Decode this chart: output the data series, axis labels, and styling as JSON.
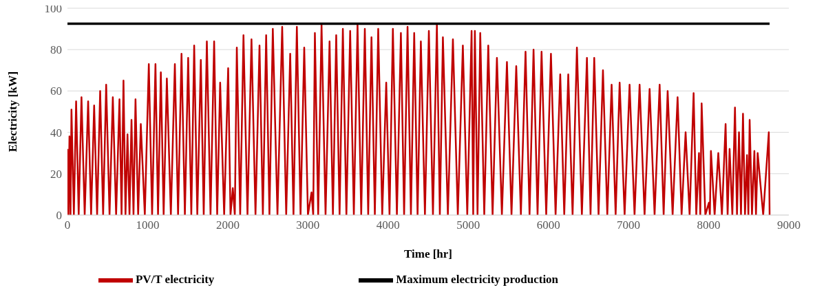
{
  "chart_data": {
    "type": "line",
    "xlabel": "Time [hr]",
    "ylabel": "Electricity [kW]",
    "xlim": [
      0,
      9000
    ],
    "xticks": [
      0,
      1000,
      2000,
      3000,
      4000,
      5000,
      6000,
      7000,
      8000,
      9000
    ],
    "ylim": [
      0,
      100
    ],
    "yticks": [
      0,
      20,
      40,
      60,
      80,
      100
    ],
    "grid": "y",
    "legend": "bottom",
    "marker": "none",
    "line_style": "solid",
    "series": [
      {
        "name": "PV/T electricity",
        "color": "#c00000",
        "x": [
          0,
          12,
          25,
          38,
          50,
          80,
          108,
          140,
          175,
          215,
          258,
          295,
          333,
          370,
          408,
          445,
          483,
          525,
          566,
          607,
          649,
          675,
          699,
          724,
          749,
          774,
          799,
          824,
          849,
          882,
          915,
          965,
          1015,
          1056,
          1098,
          1130,
          1165,
          1200,
          1240,
          1290,
          1340,
          1380,
          1423,
          1465,
          1506,
          1545,
          1581,
          1620,
          1664,
          1700,
          1739,
          1785,
          1830,
          1868,
          1905,
          1955,
          2005,
          2034,
          2063,
          2088,
          2113,
          2155,
          2196,
          2246,
          2296,
          2346,
          2396,
          2438,
          2479,
          2520,
          2562,
          2620,
          2679,
          2729,
          2779,
          2820,
          2862,
          2908,
          2954,
          3000,
          3045,
          3066,
          3087,
          3128,
          3170,
          3220,
          3270,
          3312,
          3353,
          3395,
          3436,
          3480,
          3527,
          3573,
          3619,
          3665,
          3710,
          3752,
          3793,
          3835,
          3877,
          3927,
          3977,
          4018,
          4060,
          4110,
          4160,
          4200,
          4243,
          4285,
          4326,
          4368,
          4409,
          4460,
          4509,
          4560,
          4609,
          4646,
          4684,
          4746,
          4809,
          4870,
          4933,
          4988,
          5042,
          5062,
          5083,
          5116,
          5150,
          5200,
          5250,
          5304,
          5358,
          5420,
          5483,
          5540,
          5599,
          5657,
          5715,
          5765,
          5815,
          5865,
          5915,
          5973,
          6032,
          6090,
          6148,
          6198,
          6248,
          6302,
          6356,
          6418,
          6481,
          6526,
          6572,
          6626,
          6681,
          6735,
          6789,
          6839,
          6889,
          6951,
          7013,
          7075,
          7138,
          7200,
          7263,
          7325,
          7388,
          7438,
          7488,
          7550,
          7612,
          7662,
          7712,
          7762,
          7812,
          7845,
          7879,
          7895,
          7912,
          7958,
          8003,
          8015,
          8028,
          8074,
          8120,
          8165,
          8211,
          8236,
          8261,
          8295,
          8328,
          8353,
          8378,
          8403,
          8428,
          8453,
          8478,
          8495,
          8511,
          8540,
          8570,
          8590,
          8611,
          8680,
          8750,
          8760
        ],
        "values": [
          32,
          0,
          38,
          0,
          51,
          0,
          55,
          0,
          57,
          0,
          55,
          0,
          53,
          0,
          60,
          0,
          63,
          0,
          57,
          0,
          56,
          0,
          65,
          0,
          39,
          0,
          46,
          0,
          56,
          0,
          44,
          0,
          73,
          0,
          73,
          0,
          69,
          0,
          66,
          0,
          73,
          0,
          78,
          0,
          76,
          0,
          82,
          0,
          75,
          0,
          84,
          0,
          84,
          0,
          64,
          0,
          71,
          0,
          13,
          0,
          81,
          0,
          87,
          0,
          85,
          0,
          82,
          0,
          87,
          0,
          90,
          0,
          91,
          0,
          78,
          0,
          91,
          0,
          81,
          0,
          11,
          0,
          88,
          0,
          92,
          0,
          84,
          0,
          87,
          0,
          90,
          0,
          89,
          0,
          92,
          0,
          90,
          0,
          86,
          0,
          90,
          0,
          64,
          0,
          90,
          0,
          88,
          0,
          91,
          0,
          88,
          0,
          84,
          0,
          89,
          0,
          92,
          0,
          86,
          0,
          85,
          0,
          82,
          0,
          89,
          0,
          89,
          0,
          88,
          0,
          82,
          0,
          76,
          0,
          74,
          0,
          72,
          0,
          79,
          0,
          80,
          0,
          79,
          0,
          78,
          0,
          68,
          0,
          68,
          0,
          81,
          0,
          76,
          0,
          76,
          0,
          70,
          0,
          63,
          0,
          64,
          0,
          63,
          0,
          63,
          0,
          61,
          0,
          63,
          0,
          60,
          0,
          57,
          0,
          40,
          0,
          59,
          0,
          30,
          0,
          54,
          0,
          6,
          0,
          31,
          0,
          30,
          0,
          44,
          0,
          32,
          0,
          52,
          0,
          40,
          0,
          49,
          0,
          29,
          0,
          46,
          0,
          31,
          0,
          30,
          0,
          40,
          0
        ]
      },
      {
        "name": "Maximum electricity production",
        "color": "#000000",
        "x": [
          0,
          8760
        ],
        "values": [
          92.5,
          92.5
        ]
      }
    ]
  }
}
